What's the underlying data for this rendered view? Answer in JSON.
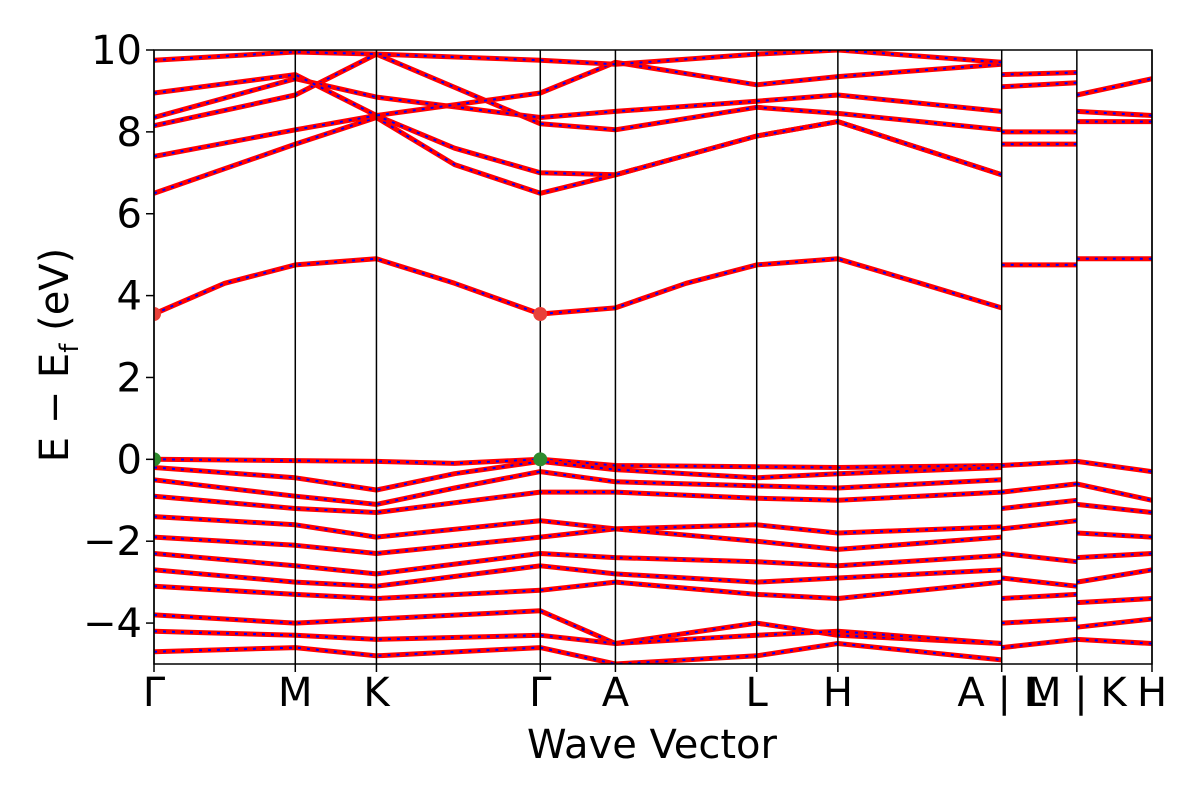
{
  "chart_data": {
    "type": "line",
    "xlabel": "Wave Vector",
    "ylabel_main": "E − E",
    "ylabel_sub": "f",
    "ylabel_tail": " (eV)",
    "ylim": [
      -5,
      10
    ],
    "yticks": [
      "−4",
      "−2",
      "0",
      "2",
      "4",
      "6",
      "8",
      "10"
    ],
    "ytick_values": [
      -4,
      -2,
      0,
      2,
      4,
      6,
      8,
      10
    ],
    "xlim": [
      0,
      6.64
    ],
    "kpoints": [
      {
        "label": "Γ",
        "x": 0.0
      },
      {
        "label": "M",
        "x": 0.94
      },
      {
        "label": "K",
        "x": 1.48
      },
      {
        "label": "Γ",
        "x": 2.57
      },
      {
        "label": "A",
        "x": 3.07
      },
      {
        "label": "L",
        "x": 4.01
      },
      {
        "label": "H",
        "x": 4.55
      },
      {
        "label": "A | L",
        "x": 5.64
      },
      {
        "label": "M | K",
        "x": 6.14
      },
      {
        "label": "H",
        "x": 6.64
      }
    ],
    "segments": [
      {
        "from": 0.0,
        "to": 5.64
      },
      {
        "from": 5.64,
        "to": 6.14
      },
      {
        "from": 6.14,
        "to": 6.64
      }
    ],
    "bands": [
      {
        "name": "",
        "x": [
          0,
          0.47,
          0.94,
          1.48,
          2.0,
          2.57,
          3.07,
          3.54,
          4.01,
          4.55,
          5.1,
          5.64
        ],
        "y": [
          3.55,
          4.3,
          4.75,
          4.9,
          4.3,
          3.55,
          3.7,
          4.3,
          4.75,
          4.9,
          4.3,
          3.7
        ]
      },
      {
        "name": "",
        "x": [
          5.64,
          6.14
        ],
        "y": [
          4.75,
          4.75
        ]
      },
      {
        "name": "",
        "x": [
          6.14,
          6.64
        ],
        "y": [
          4.9,
          4.9
        ]
      },
      {
        "name": "",
        "x": [
          0,
          0.94,
          1.48,
          2.0,
          2.57,
          3.07,
          4.01,
          4.55,
          5.64
        ],
        "y": [
          6.5,
          7.7,
          8.35,
          7.2,
          6.5,
          6.95,
          7.9,
          8.25,
          6.95
        ]
      },
      {
        "name": "",
        "x": [
          0,
          0.94,
          1.48,
          2.0,
          2.57,
          3.07,
          4.01,
          4.55,
          5.64
        ],
        "y": [
          7.4,
          8.05,
          8.4,
          7.6,
          7.0,
          6.95,
          7.9,
          8.25,
          6.95
        ]
      },
      {
        "name": "",
        "x": [
          0,
          0.94,
          1.48,
          2.57,
          3.07,
          4.01,
          4.55,
          5.64
        ],
        "y": [
          8.15,
          8.9,
          9.9,
          8.2,
          8.05,
          8.6,
          8.45,
          8.05
        ]
      },
      {
        "name": "",
        "x": [
          0,
          0.94,
          1.48,
          2.57,
          3.07,
          4.01,
          4.55,
          5.64
        ],
        "y": [
          8.35,
          9.3,
          8.85,
          8.35,
          8.5,
          8.75,
          8.9,
          8.5
        ]
      },
      {
        "name": "",
        "x": [
          0,
          0.94,
          1.48,
          2.57,
          3.07,
          4.01,
          4.55,
          5.64
        ],
        "y": [
          8.95,
          9.4,
          8.4,
          8.95,
          9.7,
          9.15,
          9.35,
          9.65
        ]
      },
      {
        "name": "",
        "x": [
          0,
          0.94,
          1.48,
          2.57,
          3.07,
          4.01,
          4.55,
          5.64
        ],
        "y": [
          9.75,
          9.95,
          9.9,
          9.75,
          9.65,
          9.9,
          10.0,
          9.7
        ]
      },
      {
        "name": "",
        "x": [
          5.64,
          6.14
        ],
        "y": [
          7.7,
          7.7
        ]
      },
      {
        "name": "",
        "x": [
          5.64,
          6.14
        ],
        "y": [
          8.0,
          8.0
        ]
      },
      {
        "name": "",
        "x": [
          5.64,
          6.14
        ],
        "y": [
          9.1,
          9.2
        ]
      },
      {
        "name": "",
        "x": [
          5.64,
          6.14
        ],
        "y": [
          9.4,
          9.45
        ]
      },
      {
        "name": "",
        "x": [
          6.14,
          6.64
        ],
        "y": [
          8.25,
          8.25
        ]
      },
      {
        "name": "",
        "x": [
          6.14,
          6.64
        ],
        "y": [
          8.5,
          8.4
        ]
      },
      {
        "name": "",
        "x": [
          6.14,
          6.64
        ],
        "y": [
          8.9,
          9.3
        ]
      },
      {
        "name": "",
        "x": [
          0,
          0.94,
          1.48,
          2.0,
          2.57,
          3.07,
          4.01,
          4.55,
          5.64
        ],
        "y": [
          0.0,
          -0.03,
          -0.05,
          -0.1,
          0.0,
          -0.15,
          -0.18,
          -0.2,
          -0.15
        ]
      },
      {
        "name": "",
        "x": [
          0,
          0.94,
          1.48,
          2.0,
          2.57,
          3.07,
          4.01,
          4.55,
          5.64
        ],
        "y": [
          -0.2,
          -0.45,
          -0.75,
          -0.35,
          -0.05,
          -0.25,
          -0.45,
          -0.35,
          -0.2
        ]
      },
      {
        "name": "",
        "x": [
          0,
          0.94,
          1.48,
          2.0,
          2.57,
          3.07,
          4.01,
          4.55,
          5.64
        ],
        "y": [
          -0.5,
          -0.9,
          -1.1,
          -0.7,
          -0.3,
          -0.55,
          -0.65,
          -0.7,
          -0.5
        ]
      },
      {
        "name": "",
        "x": [
          0,
          0.94,
          1.48,
          2.57,
          3.07,
          4.01,
          4.55,
          5.64
        ],
        "y": [
          -0.9,
          -1.2,
          -1.3,
          -0.8,
          -0.8,
          -0.95,
          -1.0,
          -0.8
        ]
      },
      {
        "name": "",
        "x": [
          0,
          0.94,
          1.48,
          2.57,
          3.07,
          4.01,
          4.55,
          5.64
        ],
        "y": [
          -1.4,
          -1.6,
          -1.9,
          -1.5,
          -1.7,
          -1.6,
          -1.8,
          -1.65
        ]
      },
      {
        "name": "",
        "x": [
          0,
          0.94,
          1.48,
          2.57,
          3.07,
          4.01,
          4.55,
          5.64
        ],
        "y": [
          -1.9,
          -2.1,
          -2.3,
          -1.9,
          -1.7,
          -2.0,
          -2.2,
          -1.9
        ]
      },
      {
        "name": "",
        "x": [
          0,
          0.94,
          1.48,
          2.57,
          3.07,
          4.01,
          4.55,
          5.64
        ],
        "y": [
          -2.3,
          -2.6,
          -2.8,
          -2.3,
          -2.4,
          -2.5,
          -2.6,
          -2.35
        ]
      },
      {
        "name": "",
        "x": [
          0,
          0.94,
          1.48,
          2.57,
          3.07,
          4.01,
          4.55,
          5.64
        ],
        "y": [
          -2.7,
          -3.0,
          -3.1,
          -2.6,
          -2.8,
          -3.0,
          -2.9,
          -2.7
        ]
      },
      {
        "name": "",
        "x": [
          0,
          0.94,
          1.48,
          2.57,
          3.07,
          4.01,
          4.55,
          5.64
        ],
        "y": [
          -3.1,
          -3.3,
          -3.4,
          -3.2,
          -3.0,
          -3.3,
          -3.4,
          -3.0
        ]
      },
      {
        "name": "",
        "x": [
          0,
          0.94,
          1.48,
          2.57,
          3.07,
          4.01,
          4.55,
          5.64
        ],
        "y": [
          -3.8,
          -4.0,
          -3.9,
          -3.7,
          -4.5,
          -4.0,
          -4.3,
          -4.5
        ]
      },
      {
        "name": "",
        "x": [
          0,
          0.94,
          1.48,
          2.57,
          3.07,
          4.01,
          4.55,
          5.64
        ],
        "y": [
          -4.2,
          -4.3,
          -4.4,
          -4.3,
          -4.5,
          -4.3,
          -4.2,
          -4.5
        ]
      },
      {
        "name": "",
        "x": [
          0,
          0.94,
          1.48,
          2.57,
          3.07,
          4.01,
          4.55,
          5.64
        ],
        "y": [
          -4.7,
          -4.6,
          -4.8,
          -4.6,
          -5.0,
          -4.8,
          -4.5,
          -4.9
        ]
      },
      {
        "name": "",
        "x": [
          5.64,
          6.14
        ],
        "y": [
          -0.15,
          -0.05
        ]
      },
      {
        "name": "",
        "x": [
          5.64,
          6.14
        ],
        "y": [
          -0.8,
          -0.6
        ]
      },
      {
        "name": "",
        "x": [
          5.64,
          6.14
        ],
        "y": [
          -1.2,
          -1.0
        ]
      },
      {
        "name": "",
        "x": [
          5.64,
          6.14
        ],
        "y": [
          -1.7,
          -1.5
        ]
      },
      {
        "name": "",
        "x": [
          5.64,
          6.14
        ],
        "y": [
          -2.3,
          -2.5
        ]
      },
      {
        "name": "",
        "x": [
          5.64,
          6.14
        ],
        "y": [
          -2.9,
          -3.1
        ]
      },
      {
        "name": "",
        "x": [
          5.64,
          6.14
        ],
        "y": [
          -3.4,
          -3.3
        ]
      },
      {
        "name": "",
        "x": [
          5.64,
          6.14
        ],
        "y": [
          -4.0,
          -3.9
        ]
      },
      {
        "name": "",
        "x": [
          5.64,
          6.14
        ],
        "y": [
          -4.6,
          -4.4
        ]
      },
      {
        "name": "",
        "x": [
          6.14,
          6.64
        ],
        "y": [
          -0.05,
          -0.3
        ]
      },
      {
        "name": "",
        "x": [
          6.14,
          6.64
        ],
        "y": [
          -0.6,
          -1.0
        ]
      },
      {
        "name": "",
        "x": [
          6.14,
          6.64
        ],
        "y": [
          -1.1,
          -1.3
        ]
      },
      {
        "name": "",
        "x": [
          6.14,
          6.64
        ],
        "y": [
          -1.8,
          -1.9
        ]
      },
      {
        "name": "",
        "x": [
          6.14,
          6.64
        ],
        "y": [
          -2.4,
          -2.3
        ]
      },
      {
        "name": "",
        "x": [
          6.14,
          6.64
        ],
        "y": [
          -3.0,
          -2.7
        ]
      },
      {
        "name": "",
        "x": [
          6.14,
          6.64
        ],
        "y": [
          -3.5,
          -3.4
        ]
      },
      {
        "name": "",
        "x": [
          6.14,
          6.64
        ],
        "y": [
          -4.1,
          -3.9
        ]
      },
      {
        "name": "",
        "x": [
          6.14,
          6.64
        ],
        "y": [
          -4.4,
          -4.5
        ]
      }
    ],
    "markers": [
      {
        "x": 0.0,
        "y": 3.55,
        "color": "#e8413a"
      },
      {
        "x": 2.57,
        "y": 3.55,
        "color": "#e8413a"
      },
      {
        "x": 0.0,
        "y": 0.0,
        "color": "#2e8b2e"
      },
      {
        "x": 2.57,
        "y": 0.0,
        "color": "#2e8b2e"
      }
    ],
    "band_color": "#ff0000",
    "band_dash_color": "#0000ff",
    "grid": false,
    "legend": false
  }
}
